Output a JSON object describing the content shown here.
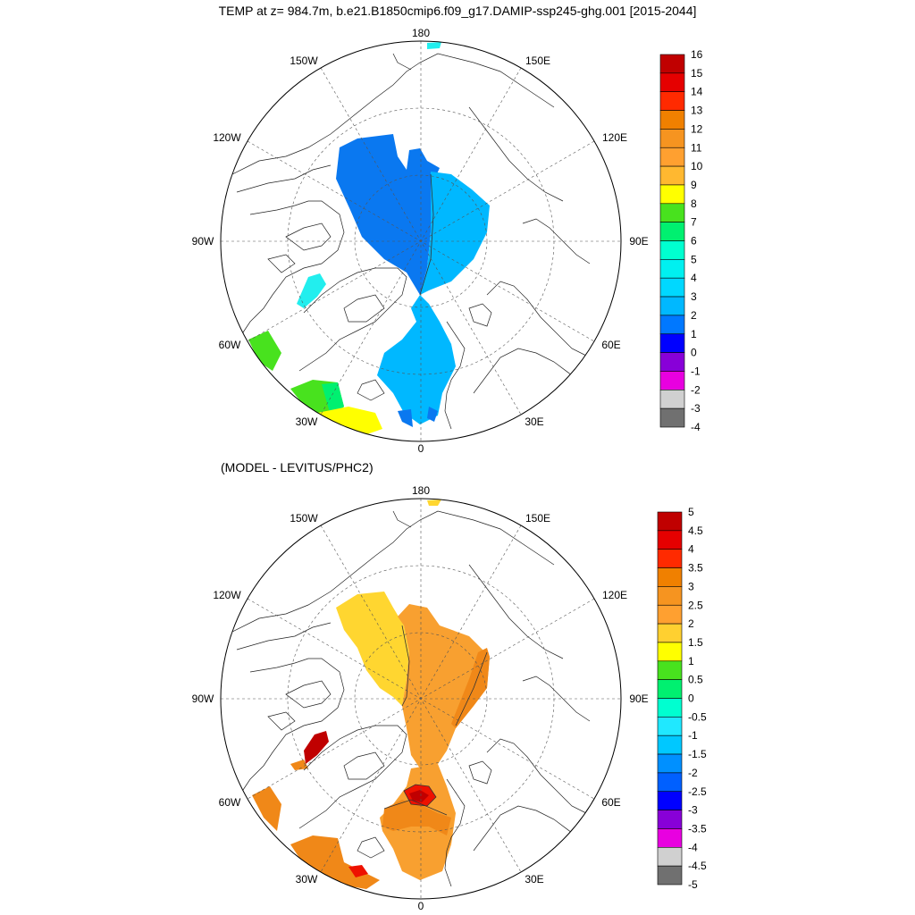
{
  "title": "TEMP at z= 984.7m, b.e21.B1850cmip6.f09_g17.DAMIP-ssp245-ghg.001 [2015-2044]",
  "subtitle": "(MODEL - LEVITUS/PHC2)",
  "lon_labels": {
    "lon_180": "180",
    "lon_150w": "150W",
    "lon_150e": "150E",
    "lon_120w": "120W",
    "lon_120e": "120E",
    "lon_90w": "90W",
    "lon_90e": "90E",
    "lon_60w": "60W",
    "lon_60e": "60E",
    "lon_30w": "30W",
    "lon_30e": "30E",
    "lon_0": "0"
  },
  "colorbar_top": {
    "labels": [
      "16",
      "15",
      "14",
      "13",
      "12",
      "11",
      "10",
      "9",
      "8",
      "7",
      "6",
      "5",
      "4",
      "3",
      "2",
      "1",
      "0",
      "-1",
      "-2",
      "-3",
      "-4"
    ],
    "colors": [
      "#c00000",
      "#e50000",
      "#ff2a00",
      "#f08000",
      "#f69420",
      "#ffa030",
      "#ffb830",
      "#ffff00",
      "#48e21e",
      "#00f070",
      "#00ffd0",
      "#00f0f0",
      "#00d8ff",
      "#00b8ff",
      "#0078ff",
      "#0000ff",
      "#8800d8",
      "#e800e0",
      "#d0d0d0",
      "#707070"
    ]
  },
  "colorbar_bottom": {
    "labels": [
      "5",
      "4.5",
      "4",
      "3.5",
      "3",
      "2.5",
      "2",
      "1.5",
      "1",
      "0.5",
      "0",
      "-0.5",
      "-1",
      "-1.5",
      "-2",
      "-2.5",
      "-3",
      "-3.5",
      "-4",
      "-4.5",
      "-5"
    ],
    "colors": [
      "#c00000",
      "#e50000",
      "#ff2a00",
      "#f08000",
      "#f69420",
      "#ffa030",
      "#ffd030",
      "#ffff00",
      "#48e21e",
      "#00f070",
      "#00ffd0",
      "#20e8ff",
      "#00c8ff",
      "#0090ff",
      "#0060ff",
      "#0000ff",
      "#8800d8",
      "#e800e0",
      "#d0d0d0",
      "#707070"
    ]
  },
  "fill_colors": {
    "top_main_blue": "#0a78f0",
    "top_light_blue": "#00b8ff",
    "top_cyan": "#22eeee",
    "top_green": "#48e21e",
    "top_green2": "#00f070",
    "top_yellow": "#ffff00",
    "bot_yellow": "#ffd630",
    "bot_orange": "#f8a030",
    "bot_dark_orange": "#f08818",
    "bot_red": "#ee1100",
    "bot_dark_red": "#c00000"
  }
}
